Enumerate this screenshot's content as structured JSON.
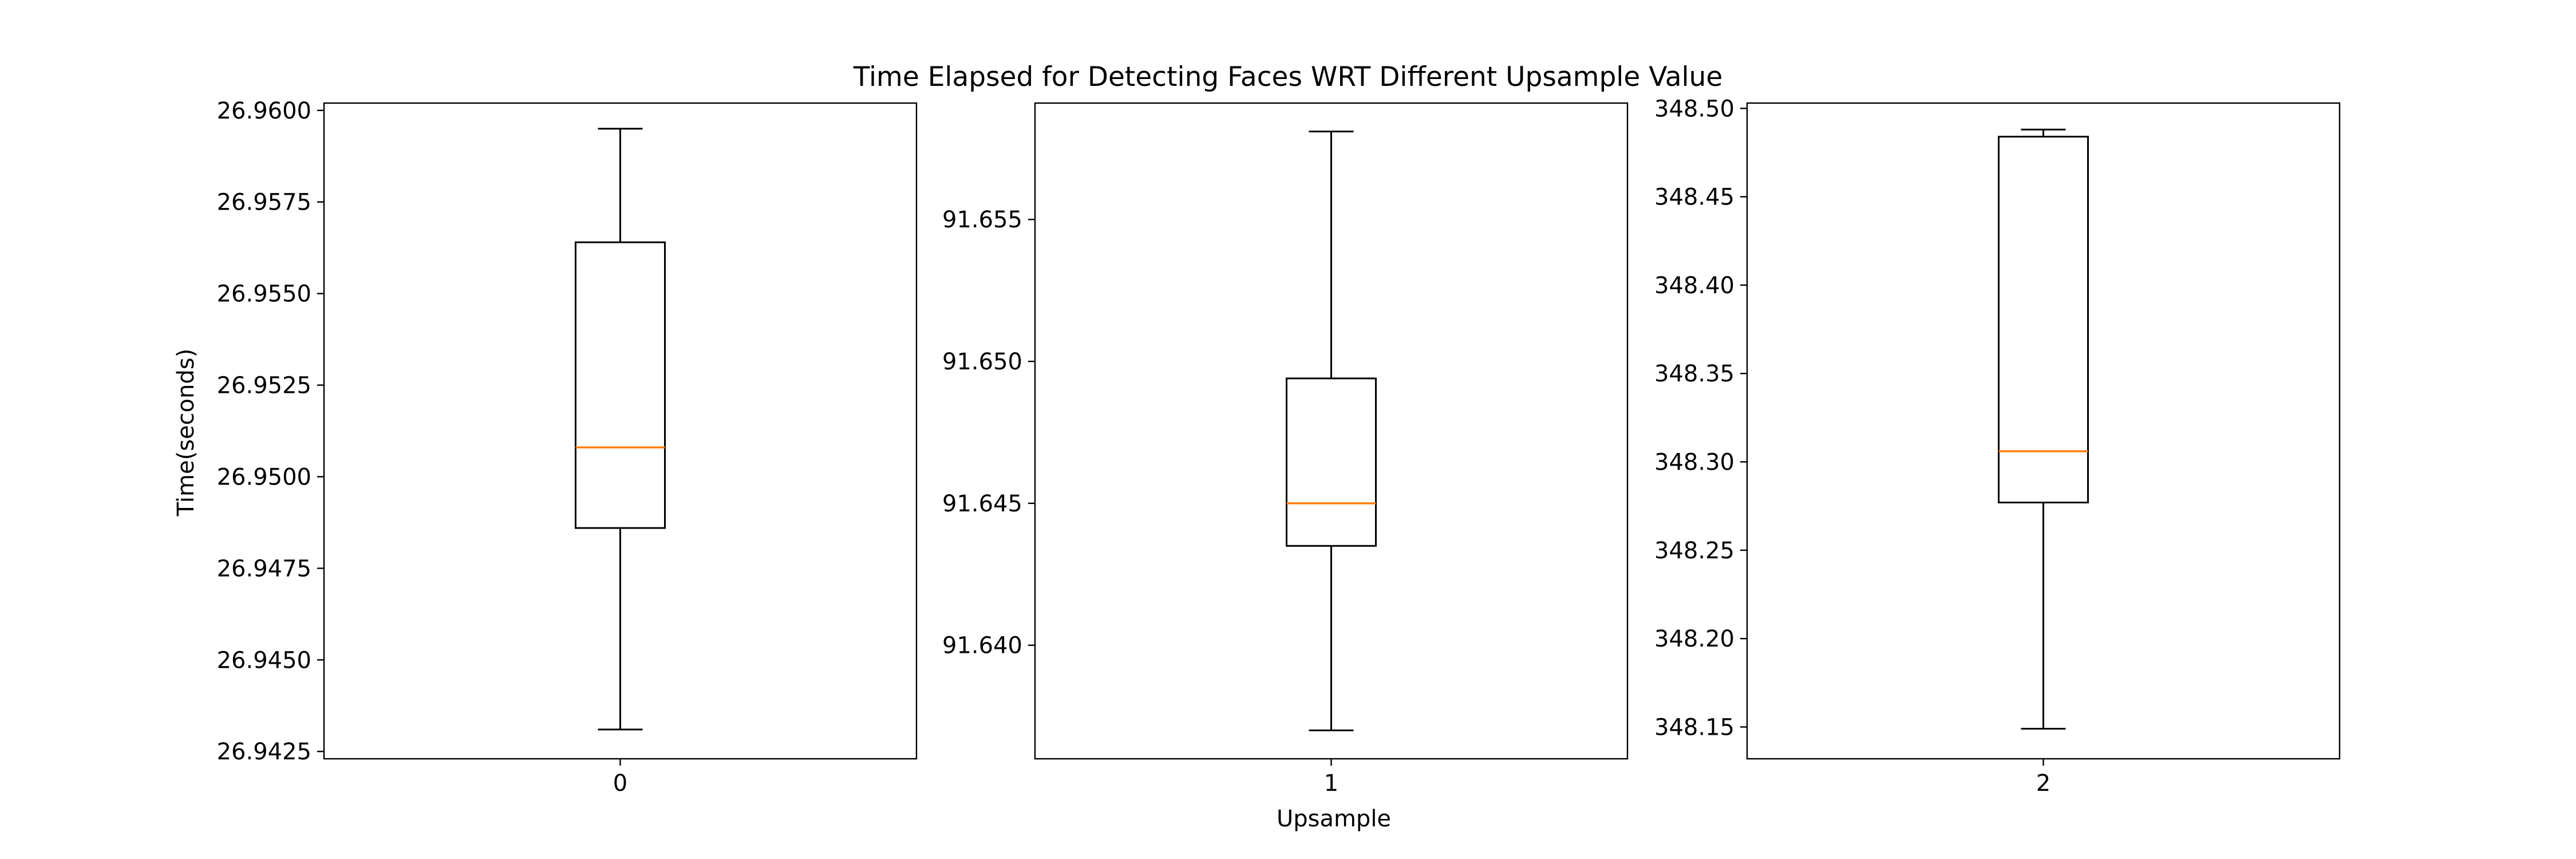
{
  "figure": {
    "title": "Time Elapsed for Detecting Faces WRT Different Upsample Value",
    "xlabel": "Upsample",
    "ylabel": "Time(seconds)"
  },
  "colors": {
    "box": "#000000",
    "median": "#ff7f0e",
    "background": "#ffffff"
  },
  "chart_data": [
    {
      "type": "box",
      "category": "0",
      "ylim": [
        26.9423,
        26.9602
      ],
      "yticks": [
        26.9425,
        26.945,
        26.9475,
        26.95,
        26.9525,
        26.955,
        26.9575,
        26.96
      ],
      "ytick_labels": [
        "26.9425",
        "26.9450",
        "26.9475",
        "26.9500",
        "26.9525",
        "26.9550",
        "26.9575",
        "26.9600"
      ],
      "stats": {
        "whislo": 26.9431,
        "q1": 26.9486,
        "med": 26.9508,
        "q3": 26.9564,
        "whishi": 26.9595
      }
    },
    {
      "type": "box",
      "category": "1",
      "ylim": [
        91.636,
        91.6591
      ],
      "yticks": [
        91.64,
        91.645,
        91.65,
        91.655
      ],
      "ytick_labels": [
        "91.640",
        "91.645",
        "91.650",
        "91.655"
      ],
      "stats": {
        "whislo": 91.637,
        "q1": 91.6435,
        "med": 91.645,
        "q3": 91.6494,
        "whishi": 91.6581
      }
    },
    {
      "type": "box",
      "category": "2",
      "ylim": [
        348.132,
        348.503
      ],
      "yticks": [
        348.15,
        348.2,
        348.25,
        348.3,
        348.35,
        348.4,
        348.45,
        348.5
      ],
      "ytick_labels": [
        "348.15",
        "348.20",
        "348.25",
        "348.30",
        "348.35",
        "348.40",
        "348.45",
        "348.50"
      ],
      "stats": {
        "whislo": 348.149,
        "q1": 348.277,
        "med": 348.306,
        "q3": 348.484,
        "whishi": 348.488
      }
    }
  ]
}
